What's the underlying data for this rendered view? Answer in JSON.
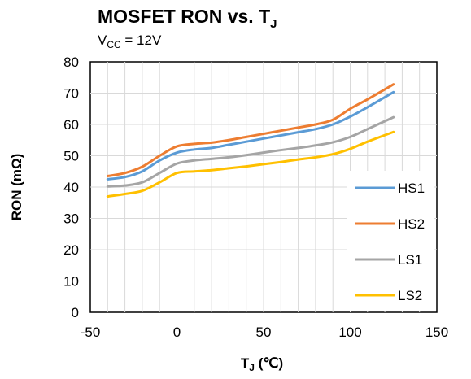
{
  "chart_data": {
    "type": "line",
    "title": {
      "main": "MOSFET RON vs. T",
      "sub": "J"
    },
    "subtitle": {
      "prefix": "V",
      "sub": "CC",
      "suffix": " = 12V"
    },
    "xlabel": {
      "main": "T",
      "sub": "J",
      "suffix": " (℃)"
    },
    "ylabel": "RON (mΩ)",
    "xlim": [
      -50,
      150
    ],
    "ylim": [
      0,
      80
    ],
    "xticks": [
      -50,
      0,
      50,
      100,
      150
    ],
    "yticks": [
      0,
      10,
      20,
      30,
      40,
      50,
      60,
      70,
      80
    ],
    "grid": {
      "x_minor_step": 10,
      "y_step": 10
    },
    "legend_position": "bottom-right",
    "series": [
      {
        "name": "HS1",
        "color": "#5B9BD5",
        "x": [
          -40,
          -30,
          -20,
          -10,
          0,
          10,
          20,
          30,
          40,
          50,
          60,
          70,
          80,
          90,
          100,
          110,
          125
        ],
        "y": [
          42.5,
          43.2,
          45.0,
          48.5,
          51.0,
          52.0,
          52.5,
          53.5,
          54.5,
          55.5,
          56.5,
          57.5,
          58.5,
          60.0,
          62.5,
          65.5,
          70.3
        ]
      },
      {
        "name": "HS2",
        "color": "#ED7D31",
        "x": [
          -40,
          -30,
          -20,
          -10,
          0,
          10,
          20,
          30,
          40,
          50,
          60,
          70,
          80,
          90,
          100,
          110,
          125
        ],
        "y": [
          43.5,
          44.5,
          46.5,
          50.0,
          53.0,
          53.8,
          54.2,
          55.0,
          56.0,
          57.0,
          58.0,
          59.0,
          60.0,
          61.5,
          65.0,
          68.0,
          72.8
        ]
      },
      {
        "name": "LS1",
        "color": "#A5A5A5",
        "x": [
          -40,
          -30,
          -20,
          -10,
          0,
          10,
          20,
          30,
          40,
          50,
          60,
          70,
          80,
          90,
          100,
          110,
          125
        ],
        "y": [
          40.2,
          40.5,
          41.5,
          44.5,
          47.5,
          48.5,
          49.0,
          49.5,
          50.2,
          51.0,
          51.8,
          52.5,
          53.3,
          54.3,
          56.0,
          58.5,
          62.3
        ]
      },
      {
        "name": "LS2",
        "color": "#FFC000",
        "x": [
          -40,
          -30,
          -20,
          -10,
          0,
          10,
          20,
          30,
          40,
          50,
          60,
          70,
          80,
          90,
          100,
          110,
          125
        ],
        "y": [
          37.0,
          37.8,
          38.8,
          41.5,
          44.5,
          45.0,
          45.4,
          46.0,
          46.6,
          47.3,
          48.0,
          48.8,
          49.5,
          50.5,
          52.2,
          54.5,
          57.6
        ]
      }
    ]
  }
}
